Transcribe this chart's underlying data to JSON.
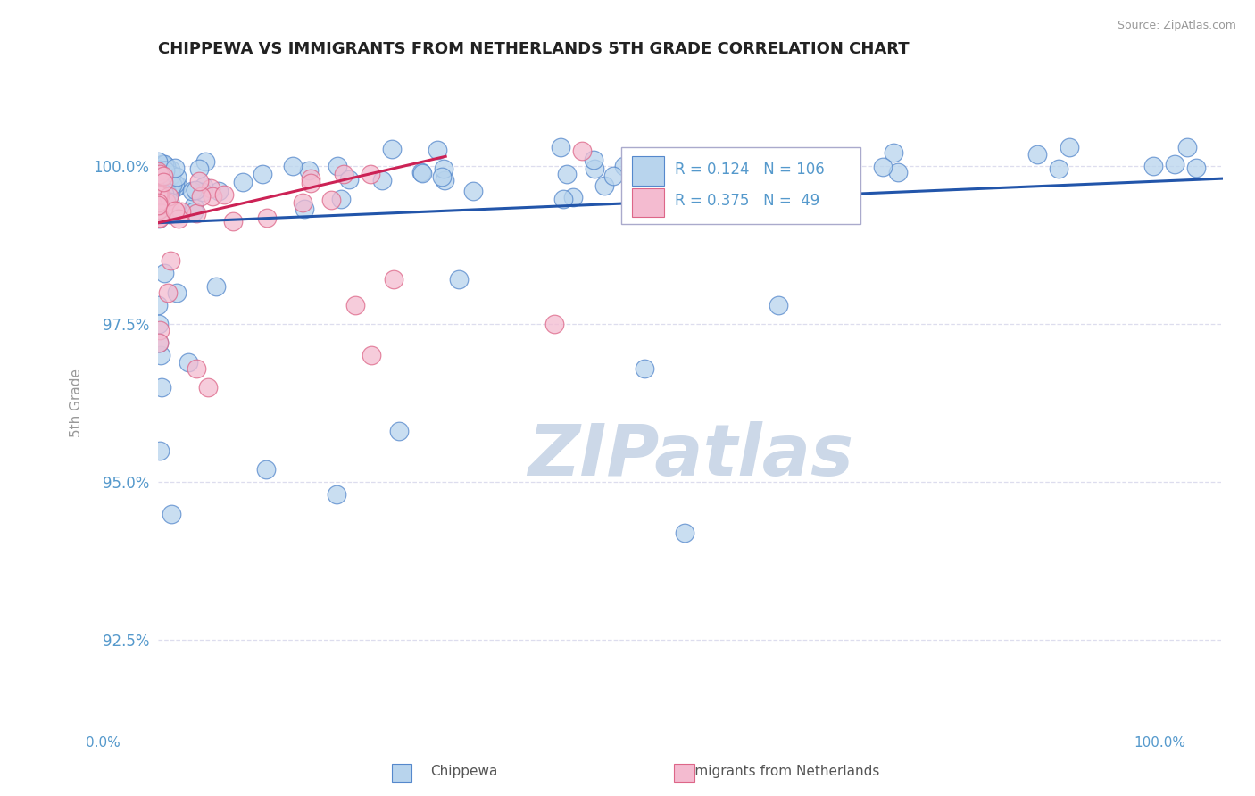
{
  "title": "CHIPPEWA VS IMMIGRANTS FROM NETHERLANDS 5TH GRADE CORRELATION CHART",
  "source_text": "Source: ZipAtlas.com",
  "ylabel": "5th Grade",
  "yticks": [
    92.5,
    95.0,
    97.5,
    100.0
  ],
  "ytick_labels": [
    "92.5%",
    "95.0%",
    "97.5%",
    "100.0%"
  ],
  "xlim": [
    0.0,
    1.0
  ],
  "ylim": [
    91.0,
    101.5
  ],
  "blue_R": 0.124,
  "blue_N": 106,
  "pink_R": 0.375,
  "pink_N": 49,
  "blue_color": "#b8d4ed",
  "blue_edge": "#5588cc",
  "pink_color": "#f4bbd0",
  "pink_edge": "#dd6688",
  "blue_line_color": "#2255aa",
  "pink_line_color": "#cc2255",
  "title_color": "#333333",
  "axis_color": "#5599cc",
  "grid_color": "#ddddee",
  "watermark_color": "#ccd8e8"
}
